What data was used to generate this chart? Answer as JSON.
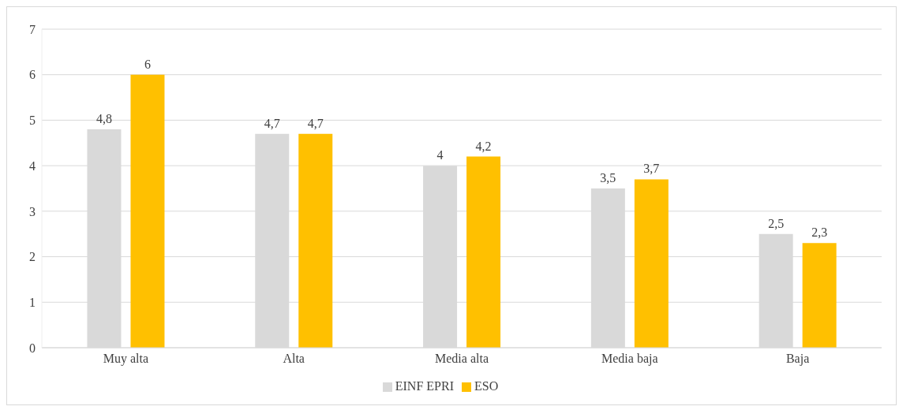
{
  "chart_data": {
    "type": "bar",
    "categories": [
      "Muy alta",
      "Alta",
      "Media alta",
      "Media baja",
      "Baja"
    ],
    "series": [
      {
        "name": "EINF EPRI",
        "color": "#d9d9d9",
        "values": [
          4.8,
          4.7,
          4,
          3.5,
          2.5
        ],
        "value_labels": [
          "4,8",
          "4,7",
          "4",
          "3,5",
          "2,5"
        ]
      },
      {
        "name": "ESO",
        "color": "#ffc000",
        "values": [
          6,
          4.7,
          4.2,
          3.7,
          2.3
        ],
        "value_labels": [
          "6",
          "4,7",
          "4,2",
          "3,7",
          "2,3"
        ]
      }
    ],
    "ylim": [
      0,
      7
    ],
    "yticks": [
      0,
      1,
      2,
      3,
      4,
      5,
      6,
      7
    ],
    "grid": "y",
    "legend": "bottom"
  }
}
